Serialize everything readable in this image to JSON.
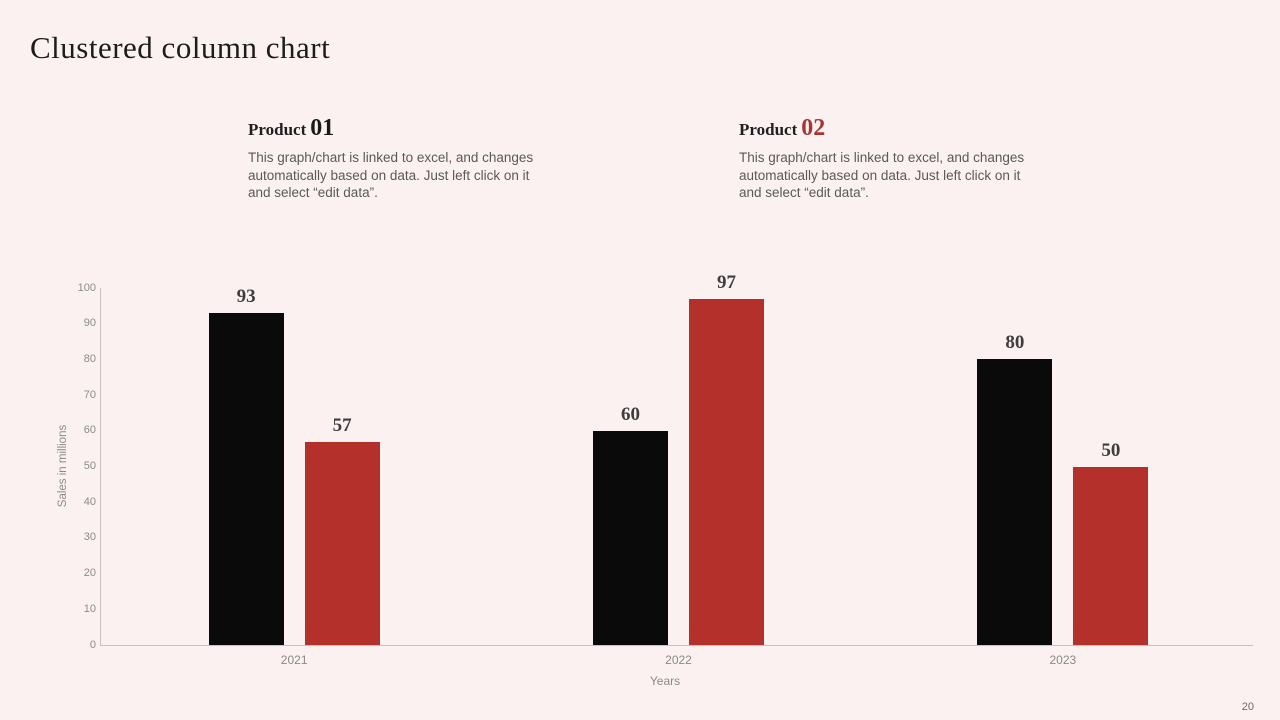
{
  "slide": {
    "title": "Clustered column chart",
    "page_number": "20"
  },
  "products": [
    {
      "label": "Product",
      "number": "01",
      "number_color": "#1a1a1a",
      "description": "This graph/chart is linked to excel, and changes automatically based on data. Just left click on it and select “edit data”."
    },
    {
      "label": "Product",
      "number": "02",
      "number_color": "#a43733",
      "description": "This graph/chart is linked to excel, and changes automatically based on data. Just left click on it and select “edit data”."
    }
  ],
  "chart_data": {
    "type": "bar",
    "title": "",
    "categories": [
      "2021",
      "2022",
      "2023"
    ],
    "series": [
      {
        "name": "Product 01",
        "color": "#0a0a0a",
        "values": [
          93,
          60,
          80
        ]
      },
      {
        "name": "Product 02",
        "color": "#b3302b",
        "values": [
          57,
          97,
          50
        ]
      }
    ],
    "xlabel": "Years",
    "ylabel": "Sales in millions",
    "ylim": [
      0,
      100
    ],
    "ytick_step": 10,
    "grid": false,
    "legend": "none",
    "data_labels": true
  },
  "colors": {
    "background": "#fcf1f1",
    "axis_line": "#c9c0c0",
    "tick_label": "#8a8a8a",
    "data_label": "#3d3d3d",
    "body_text": "#595959"
  }
}
